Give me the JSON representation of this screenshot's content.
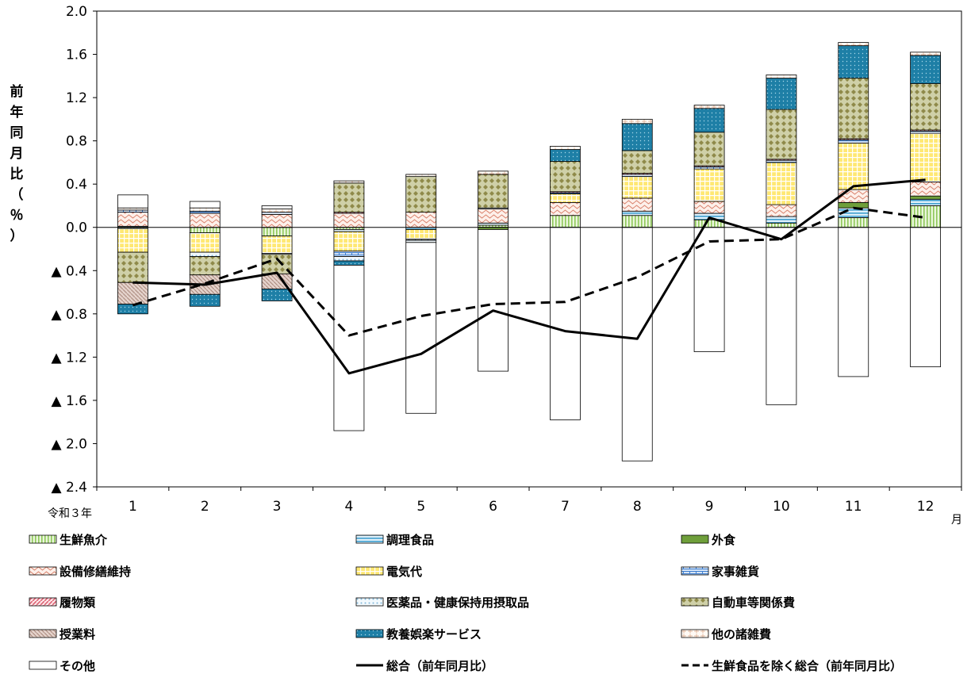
{
  "chart_data": {
    "type": "bar",
    "stacked": true,
    "categories": [
      "1",
      "2",
      "3",
      "4",
      "5",
      "6",
      "7",
      "8",
      "9",
      "10",
      "11",
      "12"
    ],
    "x_first_label": "令和３年",
    "x_unit": "月",
    "ylabel": "前年同月比（％）",
    "ylim": [
      -2.4,
      2.0
    ],
    "yticks": [
      {
        "v": 2.0,
        "label": "2.0"
      },
      {
        "v": 1.6,
        "label": "1.6"
      },
      {
        "v": 1.2,
        "label": "1.2"
      },
      {
        "v": 0.8,
        "label": "0.8"
      },
      {
        "v": 0.4,
        "label": "0.4"
      },
      {
        "v": 0.0,
        "label": "0.0"
      },
      {
        "v": -0.4,
        "label": "▲ 0.4"
      },
      {
        "v": -0.8,
        "label": "▲ 0.8"
      },
      {
        "v": -1.2,
        "label": "▲ 1.2"
      },
      {
        "v": -1.6,
        "label": "▲ 1.6"
      },
      {
        "v": -2.0,
        "label": "▲ 2.0"
      },
      {
        "v": -2.4,
        "label": "▲ 2.4"
      }
    ],
    "series": [
      {
        "name": "生鮮魚介",
        "pattern": "vlines",
        "color": "#8fc85a",
        "bg": "#eaf6dc",
        "values": [
          -0.01,
          -0.05,
          -0.08,
          -0.02,
          0.0,
          0.02,
          0.11,
          0.11,
          0.07,
          0.04,
          0.09,
          0.2
        ]
      },
      {
        "name": "調理食品",
        "pattern": "hlines",
        "color": "#3f9fcf",
        "bg": "#dff0fa",
        "values": [
          0.01,
          0.0,
          0.0,
          -0.02,
          -0.02,
          0.02,
          0.0,
          0.04,
          0.06,
          0.06,
          0.09,
          0.06
        ]
      },
      {
        "name": "外食",
        "pattern": "solid",
        "color": "#6f9f3b",
        "bg": "#6f9f3b",
        "values": [
          0.0,
          0.0,
          0.0,
          0.0,
          0.0,
          -0.02,
          0.0,
          0.0,
          0.0,
          0.0,
          0.05,
          0.03
        ]
      },
      {
        "name": "設備修繕維持",
        "pattern": "wave",
        "color": "#d9806a",
        "bg": "#fdf0ea",
        "values": [
          0.13,
          0.13,
          0.12,
          0.13,
          0.14,
          0.13,
          0.12,
          0.12,
          0.11,
          0.11,
          0.12,
          0.13
        ]
      },
      {
        "name": "電気代",
        "pattern": "grid",
        "color": "#f2c200",
        "bg": "#ffe873",
        "values": [
          -0.22,
          -0.18,
          -0.16,
          -0.18,
          -0.09,
          0.0,
          0.08,
          0.2,
          0.3,
          0.39,
          0.43,
          0.45
        ]
      },
      {
        "name": "家事雑貨",
        "pattern": "brick",
        "color": "#3f7fcf",
        "bg": "#e4eefa",
        "values": [
          0.02,
          0.02,
          0.02,
          -0.05,
          -0.01,
          0.01,
          0.01,
          0.02,
          0.02,
          0.02,
          0.03,
          0.02
        ]
      },
      {
        "name": "履物類",
        "pattern": "diag",
        "color": "#d9586a",
        "bg": "#fde3e6",
        "values": [
          0.0,
          0.0,
          0.0,
          0.01,
          0.0,
          0.0,
          0.01,
          0.01,
          0.01,
          0.01,
          0.01,
          0.01
        ]
      },
      {
        "name": "医薬品・健康保持用摂取品",
        "pattern": "dots",
        "color": "#7fb7d9",
        "bg": "#f2f9fd",
        "values": [
          0.0,
          -0.04,
          -0.01,
          -0.04,
          -0.02,
          0.0,
          0.0,
          0.0,
          0.0,
          0.0,
          0.0,
          0.0
        ]
      },
      {
        "name": "自動車等関係費",
        "pattern": "diamond",
        "color": "#8f8a4a",
        "bg": "#cfd0a8",
        "values": [
          -0.28,
          -0.17,
          -0.18,
          0.27,
          0.33,
          0.31,
          0.28,
          0.21,
          0.31,
          0.46,
          0.56,
          0.43
        ]
      },
      {
        "name": "授業料",
        "pattern": "hatch",
        "color": "#a8877a",
        "bg": "#e4d2cb",
        "values": [
          -0.2,
          -0.18,
          -0.14,
          0.0,
          0.0,
          0.0,
          0.0,
          0.0,
          0.0,
          0.0,
          0.0,
          0.0
        ]
      },
      {
        "name": "教養娯楽サービス",
        "pattern": "teal",
        "color": "#1e7fa6",
        "bg": "#1e7fa6",
        "values": [
          -0.09,
          -0.11,
          -0.11,
          -0.04,
          0.0,
          0.0,
          0.11,
          0.25,
          0.22,
          0.29,
          0.3,
          0.26
        ]
      },
      {
        "name": "他の諸雑費",
        "pattern": "cross",
        "color": "#e0b8a0",
        "bg": "#fffaf5",
        "values": [
          0.02,
          0.03,
          0.03,
          0.02,
          0.02,
          0.03,
          0.03,
          0.04,
          0.03,
          0.03,
          0.03,
          0.03
        ]
      },
      {
        "name": "その他",
        "pattern": "empty",
        "color": "#000000",
        "bg": "#ffffff",
        "values": [
          0.12,
          0.06,
          0.03,
          -1.53,
          -1.58,
          -1.31,
          -1.78,
          -2.16,
          -1.15,
          -1.64,
          -1.38,
          -1.29
        ]
      }
    ],
    "lines": [
      {
        "name": "総合（前年同月比）",
        "style": "solid",
        "values": [
          -0.51,
          -0.53,
          -0.42,
          -1.35,
          -1.17,
          -0.77,
          -0.96,
          -1.03,
          0.09,
          -0.11,
          0.38,
          0.44
        ]
      },
      {
        "name": "生鮮食品を除く総合（前年同月比）",
        "style": "dashed",
        "values": [
          -0.72,
          -0.52,
          -0.29,
          -1.0,
          -0.82,
          -0.71,
          -0.69,
          -0.46,
          -0.13,
          -0.11,
          0.18,
          0.09
        ]
      }
    ],
    "legend": [
      {
        "label": "生鮮魚介",
        "kind": "series",
        "ref": 0
      },
      {
        "label": "調理食品",
        "kind": "series",
        "ref": 1
      },
      {
        "label": "外食",
        "kind": "series",
        "ref": 2
      },
      {
        "label": "設備修繕維持",
        "kind": "series",
        "ref": 3
      },
      {
        "label": "電気代",
        "kind": "series",
        "ref": 4
      },
      {
        "label": "家事雑貨",
        "kind": "series",
        "ref": 5
      },
      {
        "label": "履物類",
        "kind": "series",
        "ref": 6
      },
      {
        "label": "医薬品・健康保持用摂取品",
        "kind": "series",
        "ref": 7
      },
      {
        "label": "自動車等関係費",
        "kind": "series",
        "ref": 8
      },
      {
        "label": "授業料",
        "kind": "series",
        "ref": 9
      },
      {
        "label": "教養娯楽サービス",
        "kind": "series",
        "ref": 10
      },
      {
        "label": "他の諸雑費",
        "kind": "series",
        "ref": 11
      },
      {
        "label": "その他",
        "kind": "series",
        "ref": 12
      },
      {
        "label": "総合（前年同月比）",
        "kind": "line",
        "ref": 0
      },
      {
        "label": "生鮮食品を除く総合（前年同月比）",
        "kind": "line",
        "ref": 1
      }
    ],
    "legend_position": "bottom",
    "grid": false
  }
}
